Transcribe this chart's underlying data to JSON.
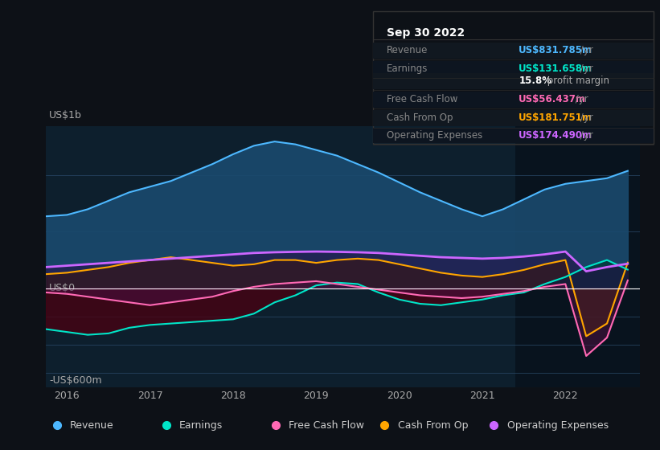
{
  "bg_color": "#0d1117",
  "plot_bg_color": "#0d1f2d",
  "title_box": {
    "date": "Sep 30 2022",
    "rows": [
      {
        "label": "Revenue",
        "value": "US$831.785m",
        "value_color": "#4db8ff"
      },
      {
        "label": "Earnings",
        "value": "US$131.658m",
        "value_color": "#00e5c8"
      },
      {
        "label": "",
        "value": "15.8%",
        "rest": " profit margin",
        "value_color": "#ffffff"
      },
      {
        "label": "Free Cash Flow",
        "value": "US$56.437m",
        "value_color": "#ff69b4"
      },
      {
        "label": "Cash From Op",
        "value": "US$181.751m",
        "value_color": "#ffa500"
      },
      {
        "label": "Operating Expenses",
        "value": "US$174.490m",
        "value_color": "#cc66ff"
      }
    ]
  },
  "ylabel_top": "US$1b",
  "ylabel_zero": "US$0",
  "ylabel_bottom": "-US$600m",
  "legend": [
    {
      "label": "Revenue",
      "color": "#4db8ff"
    },
    {
      "label": "Earnings",
      "color": "#00e5c8"
    },
    {
      "label": "Free Cash Flow",
      "color": "#ff69b4"
    },
    {
      "label": "Cash From Op",
      "color": "#ffa500"
    },
    {
      "label": "Operating Expenses",
      "color": "#cc66ff"
    }
  ],
  "x_ticks": [
    2016,
    2017,
    2018,
    2019,
    2020,
    2021,
    2022
  ],
  "ylim": [
    -700,
    1150
  ],
  "xlim": [
    2015.75,
    2022.9
  ],
  "highlight_x_start": 2021.4,
  "highlight_x_end": 2022.9,
  "revenue": {
    "x": [
      2015.75,
      2016.0,
      2016.25,
      2016.5,
      2016.75,
      2017.0,
      2017.25,
      2017.5,
      2017.75,
      2018.0,
      2018.25,
      2018.5,
      2018.75,
      2019.0,
      2019.25,
      2019.5,
      2019.75,
      2020.0,
      2020.25,
      2020.5,
      2020.75,
      2021.0,
      2021.25,
      2021.5,
      2021.75,
      2022.0,
      2022.25,
      2022.5,
      2022.75
    ],
    "y": [
      510,
      520,
      560,
      620,
      680,
      720,
      760,
      820,
      880,
      950,
      1010,
      1040,
      1020,
      980,
      940,
      880,
      820,
      750,
      680,
      620,
      560,
      510,
      560,
      630,
      700,
      740,
      760,
      780,
      832
    ]
  },
  "earnings": {
    "x": [
      2015.75,
      2016.0,
      2016.25,
      2016.5,
      2016.75,
      2017.0,
      2017.25,
      2017.5,
      2017.75,
      2018.0,
      2018.25,
      2018.5,
      2018.75,
      2019.0,
      2019.25,
      2019.5,
      2019.75,
      2020.0,
      2020.25,
      2020.5,
      2020.75,
      2021.0,
      2021.25,
      2021.5,
      2021.75,
      2022.0,
      2022.25,
      2022.5,
      2022.75
    ],
    "y": [
      -290,
      -310,
      -330,
      -320,
      -280,
      -260,
      -250,
      -240,
      -230,
      -220,
      -180,
      -100,
      -50,
      20,
      40,
      30,
      -30,
      -80,
      -110,
      -120,
      -100,
      -80,
      -50,
      -30,
      30,
      80,
      150,
      200,
      132
    ]
  },
  "free_cash_flow": {
    "x": [
      2015.75,
      2016.0,
      2016.25,
      2016.5,
      2016.75,
      2017.0,
      2017.25,
      2017.5,
      2017.75,
      2018.0,
      2018.25,
      2018.5,
      2018.75,
      2019.0,
      2019.25,
      2019.5,
      2019.75,
      2020.0,
      2020.25,
      2020.5,
      2020.75,
      2021.0,
      2021.25,
      2021.5,
      2021.75,
      2022.0,
      2022.25,
      2022.5,
      2022.75
    ],
    "y": [
      -30,
      -40,
      -60,
      -80,
      -100,
      -120,
      -100,
      -80,
      -60,
      -20,
      10,
      30,
      40,
      50,
      30,
      10,
      -10,
      -30,
      -50,
      -60,
      -70,
      -60,
      -40,
      -20,
      10,
      30,
      -480,
      -350,
      56
    ]
  },
  "cash_from_op": {
    "x": [
      2015.75,
      2016.0,
      2016.25,
      2016.5,
      2016.75,
      2017.0,
      2017.25,
      2017.5,
      2017.75,
      2018.0,
      2018.25,
      2018.5,
      2018.75,
      2019.0,
      2019.25,
      2019.5,
      2019.75,
      2020.0,
      2020.25,
      2020.5,
      2020.75,
      2021.0,
      2021.25,
      2021.5,
      2021.75,
      2022.0,
      2022.25,
      2022.5,
      2022.75
    ],
    "y": [
      100,
      110,
      130,
      150,
      180,
      200,
      220,
      200,
      180,
      160,
      170,
      200,
      200,
      180,
      200,
      210,
      200,
      170,
      140,
      110,
      90,
      80,
      100,
      130,
      170,
      200,
      -340,
      -250,
      182
    ]
  },
  "operating_expenses": {
    "x": [
      2015.75,
      2016.0,
      2016.25,
      2016.5,
      2016.75,
      2017.0,
      2017.25,
      2017.5,
      2017.75,
      2018.0,
      2018.25,
      2018.5,
      2018.75,
      2019.0,
      2019.25,
      2019.5,
      2019.75,
      2020.0,
      2020.25,
      2020.5,
      2020.75,
      2021.0,
      2021.25,
      2021.5,
      2021.75,
      2022.0,
      2022.25,
      2022.5,
      2022.75
    ],
    "y": [
      150,
      160,
      170,
      180,
      190,
      200,
      210,
      220,
      230,
      240,
      250,
      255,
      258,
      260,
      258,
      255,
      250,
      240,
      230,
      220,
      215,
      210,
      215,
      225,
      240,
      260,
      120,
      150,
      174
    ]
  }
}
